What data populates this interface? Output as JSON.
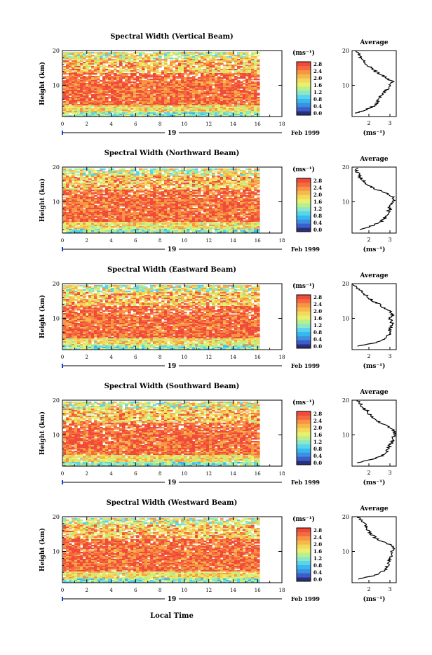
{
  "colorbar": {
    "unit_label": "(ms⁻¹)",
    "tick_labels": [
      "0.0",
      "0.4",
      "0.8",
      "1.2",
      "1.6",
      "2.0",
      "2.4",
      "2.8"
    ],
    "colors": [
      "#2b2f7a",
      "#3a5fcd",
      "#3f8fe0",
      "#35b9f0",
      "#5ad4ea",
      "#8ee6c8",
      "#b9f08a",
      "#e8f070",
      "#f4d85a",
      "#f7b84b",
      "#f79545",
      "#f56b3f",
      "#f04a3a"
    ]
  },
  "time_axis": {
    "ticks": [
      "0",
      "2",
      "4",
      "6",
      "8",
      "10",
      "12",
      "14",
      "16",
      "18"
    ],
    "day_label": "19",
    "date_label": "Feb 1999",
    "xlabel": "Local Time"
  },
  "height_axis": {
    "label": "Height (km)",
    "ticks": [
      "10",
      "20"
    ]
  },
  "average_panel": {
    "title": "Average",
    "xlabel": "(ms⁻¹)"
  },
  "panels": [
    {
      "title": "Spectral Width (Vertical Beam)",
      "avg_ticks": [
        "2",
        "3"
      ]
    },
    {
      "title": "Spectral Width (Northward Beam)",
      "avg_ticks": [
        "2",
        "3"
      ]
    },
    {
      "title": "Spectral Width (Eastward Beam)",
      "avg_ticks": [
        "2",
        "3"
      ]
    },
    {
      "title": "Spectral Width (Southward Beam)",
      "avg_ticks": [
        "2",
        "3"
      ]
    },
    {
      "title": "Spectral Width (Westward Beam)",
      "avg_ticks": [
        "2",
        "3"
      ]
    }
  ],
  "chart_data": [
    {
      "type": "heatmap",
      "title": "Spectral Width (Vertical Beam)",
      "xlabel": "",
      "ylabel": "Height (km)",
      "xlim": [
        0,
        18
      ],
      "ylim": [
        1,
        20
      ],
      "data_x_end": 16,
      "colorbar_range": [
        0.0,
        2.8
      ],
      "average_profile": {
        "xlim": [
          1.2,
          3.3
        ],
        "height": [
          2,
          3,
          4,
          5,
          6,
          7,
          8,
          9,
          10,
          11,
          12,
          13,
          14,
          15,
          16,
          17,
          18,
          19,
          20
        ],
        "value": [
          1.4,
          1.9,
          2.2,
          2.4,
          2.5,
          2.6,
          2.7,
          2.9,
          3.0,
          3.1,
          2.9,
          2.6,
          2.3,
          2.1,
          1.9,
          1.8,
          1.6,
          1.5,
          1.4
        ]
      }
    },
    {
      "type": "heatmap",
      "title": "Spectral Width (Northward Beam)",
      "xlabel": "",
      "ylabel": "Height (km)",
      "xlim": [
        0,
        18
      ],
      "ylim": [
        1,
        20
      ],
      "data_x_end": 16,
      "colorbar_range": [
        0.0,
        2.8
      ],
      "average_profile": {
        "xlim": [
          1.2,
          3.3
        ],
        "height": [
          2,
          3,
          4,
          5,
          6,
          7,
          8,
          9,
          10,
          11,
          12,
          13,
          14,
          15,
          16,
          17,
          18,
          19,
          20
        ],
        "value": [
          1.5,
          2.1,
          2.5,
          2.7,
          2.8,
          2.9,
          3.0,
          3.0,
          3.1,
          3.2,
          3.0,
          2.6,
          2.2,
          1.9,
          1.8,
          1.6,
          1.5,
          1.4,
          1.5
        ]
      }
    },
    {
      "type": "heatmap",
      "title": "Spectral Width (Eastward Beam)",
      "xlabel": "",
      "ylabel": "Height (km)",
      "xlim": [
        0,
        18
      ],
      "ylim": [
        1,
        20
      ],
      "data_x_end": 16,
      "colorbar_range": [
        0.0,
        2.8
      ],
      "average_profile": {
        "xlim": [
          1.2,
          3.3
        ],
        "height": [
          2,
          3,
          4,
          5,
          6,
          7,
          8,
          9,
          10,
          11,
          12,
          13,
          14,
          15,
          16,
          17,
          18,
          19,
          20
        ],
        "value": [
          1.5,
          2.3,
          2.7,
          2.9,
          3.0,
          3.0,
          3.1,
          3.1,
          3.0,
          3.1,
          3.0,
          2.7,
          2.5,
          2.2,
          2.0,
          1.8,
          1.6,
          1.4,
          1.3
        ]
      }
    },
    {
      "type": "heatmap",
      "title": "Spectral Width (Southward Beam)",
      "xlabel": "",
      "ylabel": "Height (km)",
      "xlim": [
        0,
        18
      ],
      "ylim": [
        1,
        20
      ],
      "data_x_end": 16,
      "colorbar_range": [
        0.0,
        2.8
      ],
      "average_profile": {
        "xlim": [
          1.2,
          3.3
        ],
        "height": [
          2,
          3,
          4,
          5,
          6,
          7,
          8,
          9,
          10,
          11,
          12,
          13,
          14,
          15,
          16,
          17,
          18,
          19,
          20
        ],
        "value": [
          1.5,
          2.2,
          2.6,
          2.8,
          2.9,
          3.0,
          3.1,
          3.1,
          3.2,
          3.2,
          3.0,
          2.7,
          2.4,
          2.2,
          2.0,
          1.9,
          1.7,
          1.6,
          1.4
        ]
      }
    },
    {
      "type": "heatmap",
      "title": "Spectral Width (Westward Beam)",
      "xlabel": "Local Time",
      "ylabel": "Height (km)",
      "xlim": [
        0,
        18
      ],
      "ylim": [
        1,
        20
      ],
      "data_x_end": 16,
      "colorbar_range": [
        0.0,
        2.8
      ],
      "average_profile": {
        "xlim": [
          1.2,
          3.3
        ],
        "height": [
          2,
          3,
          4,
          5,
          6,
          7,
          8,
          9,
          10,
          11,
          12,
          13,
          14,
          15,
          16,
          17,
          18,
          19,
          20
        ],
        "value": [
          1.5,
          2.2,
          2.6,
          2.8,
          2.9,
          3.0,
          3.0,
          3.1,
          3.1,
          3.2,
          3.0,
          2.6,
          2.3,
          2.1,
          2.0,
          1.9,
          1.8,
          1.6,
          1.5
        ]
      }
    }
  ]
}
